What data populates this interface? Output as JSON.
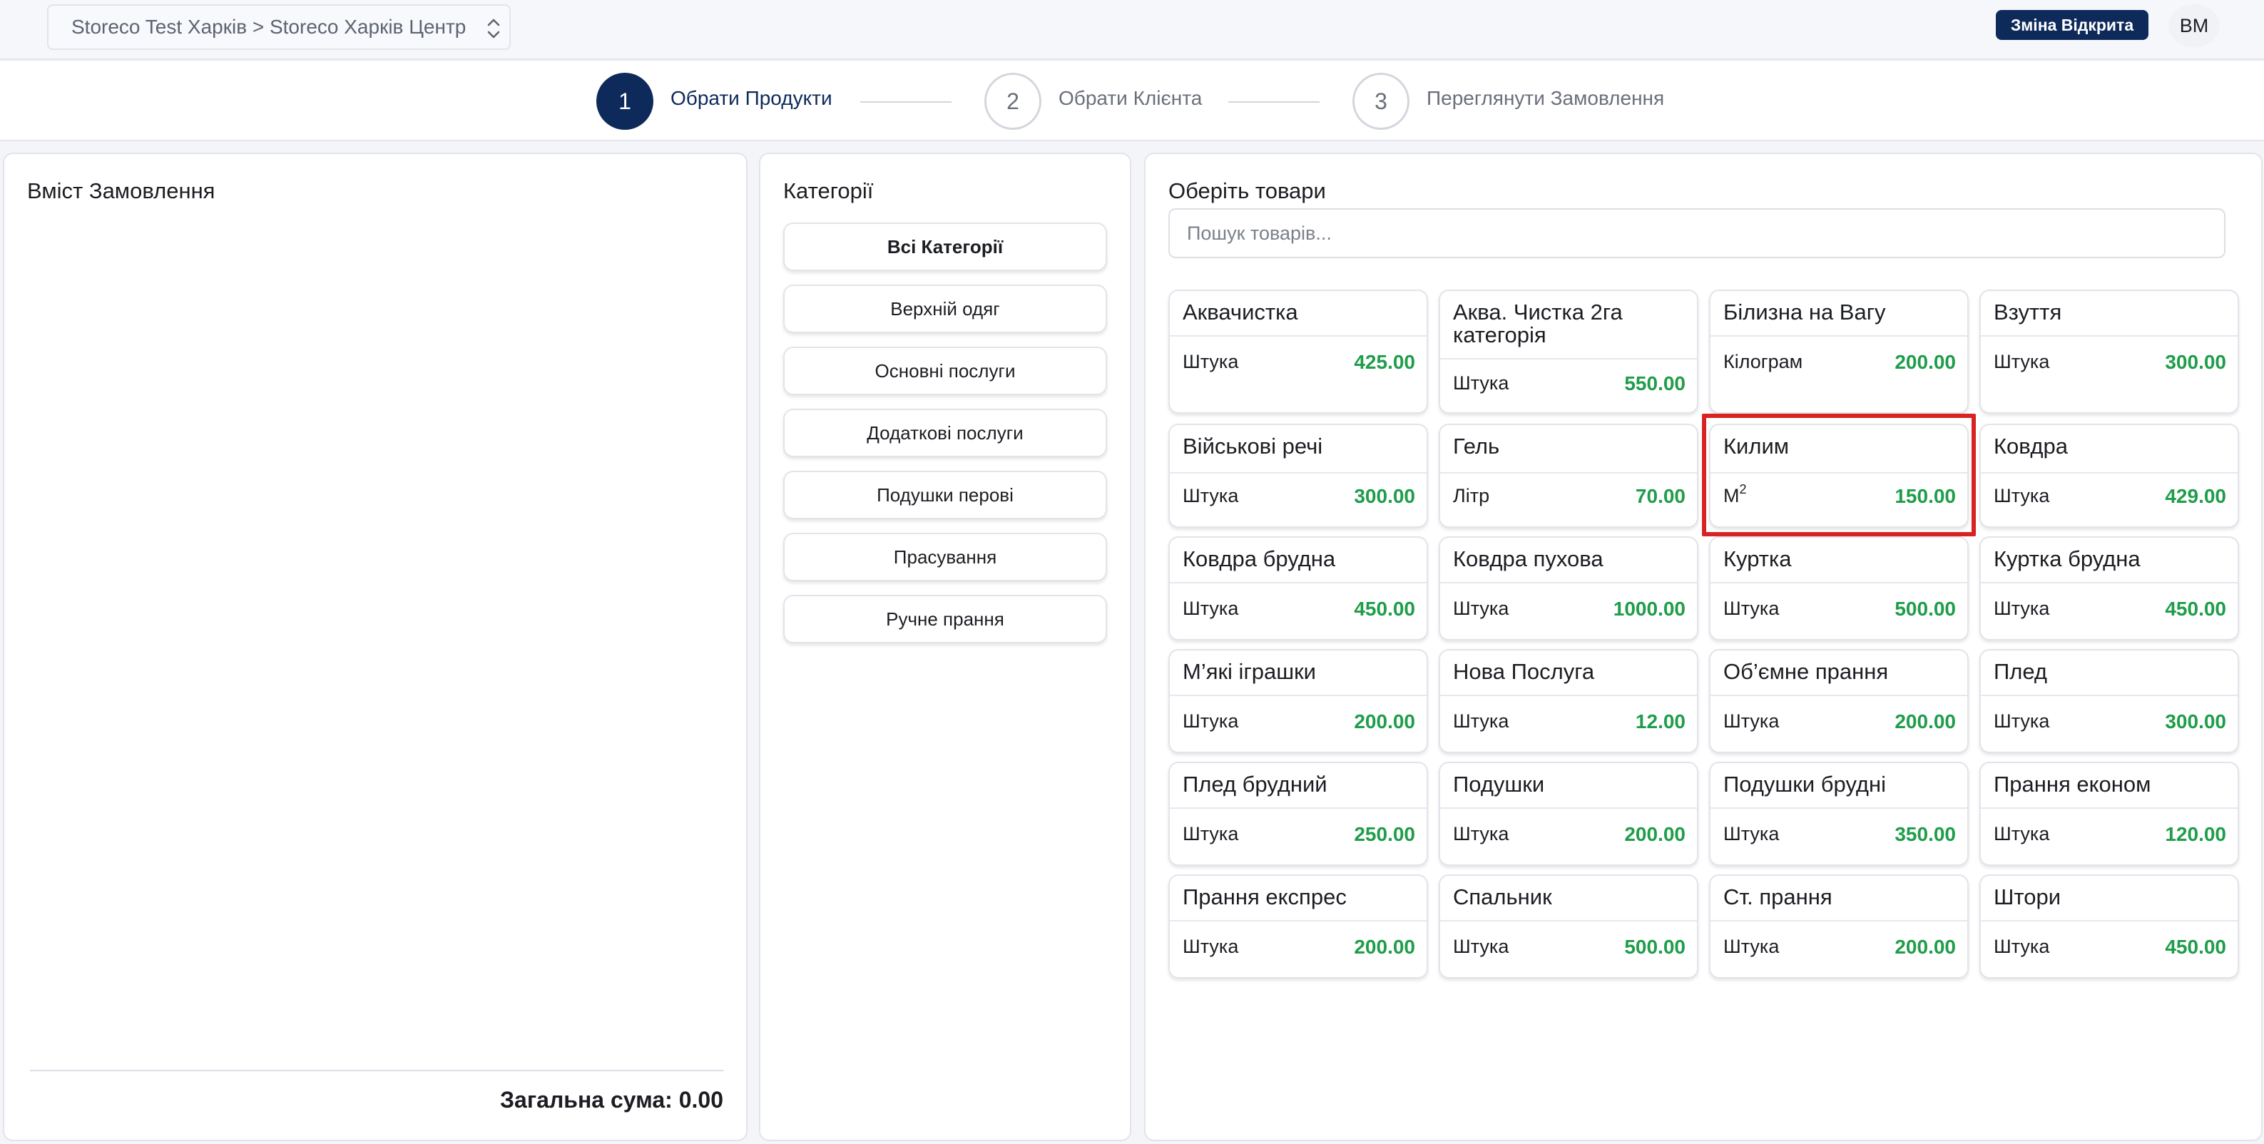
{
  "header": {
    "store_selector": "Storeco Test Харків > Storeco Харків Центр",
    "shift_badge": "Зміна Відкрита",
    "avatar_initials": "ВМ"
  },
  "stepper": {
    "steps": [
      {
        "number": "1",
        "label": "Обрати Продукти",
        "active": true
      },
      {
        "number": "2",
        "label": "Обрати Клієнта",
        "active": false
      },
      {
        "number": "3",
        "label": "Переглянути Замовлення",
        "active": false
      }
    ]
  },
  "order_panel": {
    "title": "Вміст Замовлення",
    "total": "Загальна сума: 0.00"
  },
  "categories_panel": {
    "title": "Категорії",
    "items": [
      {
        "label": "Всі Категорії",
        "selected": true
      },
      {
        "label": "Верхній одяг",
        "selected": false
      },
      {
        "label": "Основні послуги",
        "selected": false
      },
      {
        "label": "Додаткові послуги",
        "selected": false
      },
      {
        "label": "Подушки перові",
        "selected": false
      },
      {
        "label": "Прасування",
        "selected": false
      },
      {
        "label": "Ручне прання",
        "selected": false
      }
    ]
  },
  "products_panel": {
    "title": "Оберіть товари",
    "search_placeholder": "Пошук товарів...",
    "price_color": "#1f9d4a",
    "highlight_color": "#d92323",
    "products": [
      {
        "name": "Аквачистка",
        "unit": "Штука",
        "price": "425.00"
      },
      {
        "name": "Аква. Чистка 2га категорія",
        "unit": "Штука",
        "price": "550.00"
      },
      {
        "name": "Білизна на Вагу",
        "unit": "Кілограм",
        "price": "200.00"
      },
      {
        "name": "Взуття",
        "unit": "Штука",
        "price": "300.00"
      },
      {
        "name": "Військові речі",
        "unit": "Штука",
        "price": "300.00"
      },
      {
        "name": "Гель",
        "unit": "Літр",
        "price": "70.00"
      },
      {
        "name": "Килим",
        "unit": "М",
        "unit_sup": "2",
        "price": "150.00",
        "highlighted": true
      },
      {
        "name": "Ковдра",
        "unit": "Штука",
        "price": "429.00"
      },
      {
        "name": "Ковдра брудна",
        "unit": "Штука",
        "price": "450.00"
      },
      {
        "name": "Ковдра пухова",
        "unit": "Штука",
        "price": "1000.00"
      },
      {
        "name": "Куртка",
        "unit": "Штука",
        "price": "500.00"
      },
      {
        "name": "Куртка брудна",
        "unit": "Штука",
        "price": "450.00"
      },
      {
        "name": "М’які іграшки",
        "unit": "Штука",
        "price": "200.00"
      },
      {
        "name": "Нова Послуга",
        "unit": "Штука",
        "price": "12.00"
      },
      {
        "name": "Об’ємне прання",
        "unit": "Штука",
        "price": "200.00"
      },
      {
        "name": "Плед",
        "unit": "Штука",
        "price": "300.00"
      },
      {
        "name": "Плед брудний",
        "unit": "Штука",
        "price": "250.00"
      },
      {
        "name": "Подушки",
        "unit": "Штука",
        "price": "200.00"
      },
      {
        "name": "Подушки брудні",
        "unit": "Штука",
        "price": "350.00"
      },
      {
        "name": "Прання економ",
        "unit": "Штука",
        "price": "120.00"
      },
      {
        "name": "Прання експрес",
        "unit": "Штука",
        "price": "200.00"
      },
      {
        "name": "Спальник",
        "unit": "Штука",
        "price": "500.00"
      },
      {
        "name": "Ст. прання",
        "unit": "Штука",
        "price": "200.00"
      },
      {
        "name": "Штори",
        "unit": "Штука",
        "price": "450.00"
      }
    ]
  }
}
